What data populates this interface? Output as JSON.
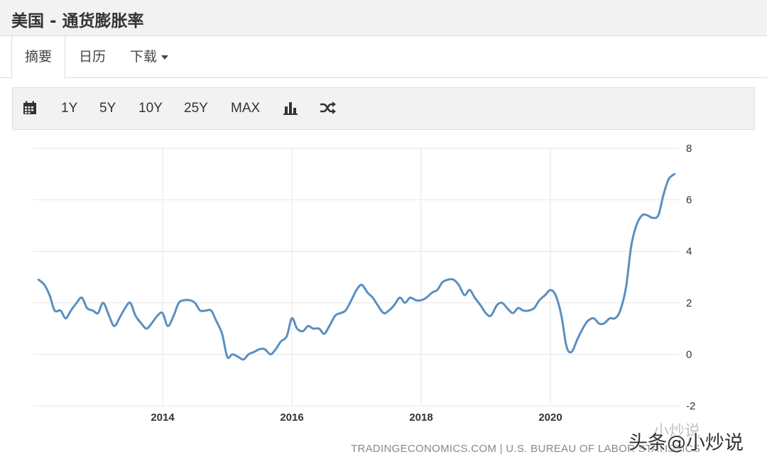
{
  "page": {
    "title": "美国 - 通货膨胀率"
  },
  "tabs": [
    {
      "label": "摘要",
      "active": true
    },
    {
      "label": "日历",
      "active": false
    },
    {
      "label": "下载",
      "active": false
    }
  ],
  "toolbar": {
    "calendar_icon": "calendar-icon",
    "ranges": [
      "1Y",
      "5Y",
      "10Y",
      "25Y",
      "MAX"
    ],
    "bar_icon": "bar-chart-icon",
    "shuffle_icon": "shuffle-icon"
  },
  "chart_data": {
    "type": "line",
    "title": "",
    "xlabel": "",
    "ylabel": "",
    "ylim": [
      -2,
      8
    ],
    "xlim": [
      2012.0,
      2022.0
    ],
    "yticks": [
      "8",
      "6",
      "4",
      "2",
      "0",
      "-2"
    ],
    "xticks": [
      "2014",
      "2016",
      "2018",
      "2020"
    ],
    "grid": true,
    "line_color": "#5a8fc0",
    "source": "TRADINGECONOMICS.COM  |  U.S. BUREAU OF LABOR STATISTICS",
    "series": [
      {
        "x": [
          2012.08,
          2012.17,
          2012.25,
          2012.33,
          2012.42,
          2012.5,
          2012.58,
          2012.67,
          2012.75,
          2012.83,
          2012.92,
          2013.0,
          2013.08,
          2013.17,
          2013.25,
          2013.33,
          2013.42,
          2013.5,
          2013.58,
          2013.67,
          2013.75,
          2013.83,
          2013.92,
          2014.0,
          2014.08,
          2014.17,
          2014.25,
          2014.33,
          2014.42,
          2014.5,
          2014.58,
          2014.67,
          2014.75,
          2014.83,
          2014.92,
          2015.0,
          2015.08,
          2015.17,
          2015.25,
          2015.33,
          2015.42,
          2015.5,
          2015.58,
          2015.67,
          2015.75,
          2015.83,
          2015.92,
          2016.0,
          2016.08,
          2016.17,
          2016.25,
          2016.33,
          2016.42,
          2016.5,
          2016.58,
          2016.67,
          2016.75,
          2016.83,
          2016.92,
          2017.0,
          2017.08,
          2017.17,
          2017.25,
          2017.33,
          2017.42,
          2017.5,
          2017.58,
          2017.67,
          2017.75,
          2017.83,
          2017.92,
          2018.0,
          2018.08,
          2018.17,
          2018.25,
          2018.33,
          2018.42,
          2018.5,
          2018.58,
          2018.67,
          2018.75,
          2018.83,
          2018.92,
          2019.0,
          2019.08,
          2019.17,
          2019.25,
          2019.33,
          2019.42,
          2019.5,
          2019.58,
          2019.67,
          2019.75,
          2019.83,
          2019.92,
          2020.0,
          2020.08,
          2020.17,
          2020.25,
          2020.33,
          2020.42,
          2020.5,
          2020.58,
          2020.67,
          2020.75,
          2020.83,
          2020.92,
          2021.0,
          2021.08,
          2021.17,
          2021.25,
          2021.33,
          2021.42,
          2021.5,
          2021.58,
          2021.67,
          2021.75,
          2021.83,
          2021.92
        ],
        "y": [
          2.9,
          2.7,
          2.3,
          1.7,
          1.7,
          1.4,
          1.7,
          2.0,
          2.2,
          1.8,
          1.7,
          1.6,
          2.0,
          1.5,
          1.1,
          1.4,
          1.8,
          2.0,
          1.5,
          1.2,
          1.0,
          1.2,
          1.5,
          1.6,
          1.1,
          1.5,
          2.0,
          2.1,
          2.1,
          2.0,
          1.7,
          1.7,
          1.7,
          1.3,
          0.8,
          -0.1,
          0.0,
          -0.1,
          -0.2,
          0.0,
          0.1,
          0.2,
          0.2,
          0.0,
          0.2,
          0.5,
          0.7,
          1.4,
          1.0,
          0.9,
          1.1,
          1.0,
          1.0,
          0.8,
          1.1,
          1.5,
          1.6,
          1.7,
          2.1,
          2.5,
          2.7,
          2.4,
          2.2,
          1.9,
          1.6,
          1.7,
          1.9,
          2.2,
          2.0,
          2.2,
          2.1,
          2.1,
          2.2,
          2.4,
          2.5,
          2.8,
          2.9,
          2.9,
          2.7,
          2.3,
          2.5,
          2.2,
          1.9,
          1.6,
          1.5,
          1.9,
          2.0,
          1.8,
          1.6,
          1.8,
          1.7,
          1.7,
          1.8,
          2.1,
          2.3,
          2.5,
          2.3,
          1.5,
          0.3,
          0.1,
          0.6,
          1.0,
          1.3,
          1.4,
          1.2,
          1.2,
          1.4,
          1.4,
          1.7,
          2.6,
          4.2,
          5.0,
          5.4,
          5.4,
          5.3,
          5.4,
          6.2,
          6.8,
          7.0
        ]
      }
    ]
  },
  "watermark": {
    "text": "头条@小炒说",
    "faint_text": "小炒说"
  }
}
